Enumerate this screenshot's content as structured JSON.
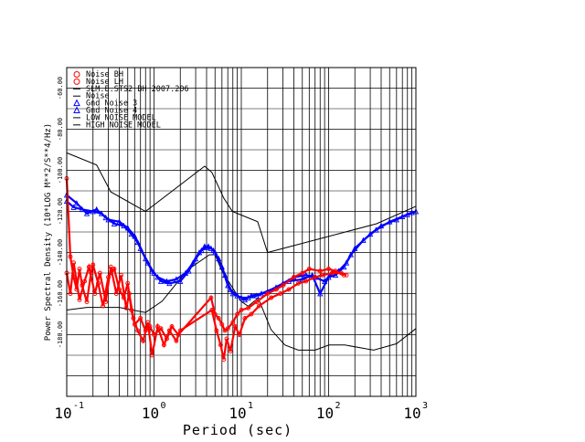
{
  "chart_data": {
    "type": "scatter",
    "xlabel": "Period (sec)",
    "ylabel": "Power Spectral Density (10*LOG M**2/S**4/Hz)",
    "x_scale": "log",
    "xlim": [
      0.1,
      1000
    ],
    "ylim": [
      -210,
      -50
    ],
    "y_ticks": [
      {
        "value": -60,
        "label": "-60.00"
      },
      {
        "value": -80,
        "label": "-80.00"
      },
      {
        "value": -100,
        "label": "-100.00"
      },
      {
        "value": -120,
        "label": "-120.00"
      },
      {
        "value": -140,
        "label": "-140.00"
      },
      {
        "value": -160,
        "label": "-160.00"
      },
      {
        "value": -180,
        "label": "-180.00"
      }
    ],
    "x_ticks": [
      {
        "value": 0.1,
        "base": "10",
        "exp": "-1"
      },
      {
        "value": 1,
        "base": "10",
        "exp": "0"
      },
      {
        "value": 10,
        "base": "10",
        "exp": "1"
      },
      {
        "value": 100,
        "base": "10",
        "exp": "2"
      },
      {
        "value": 1000,
        "base": "10",
        "exp": "3"
      }
    ],
    "grid": true,
    "legend_position": "top-left",
    "legend": [
      {
        "label": "Noise BH",
        "marker": "circle",
        "color": "#ff0000"
      },
      {
        "label": "Noise LH",
        "marker": "circle",
        "color": "#ff0000"
      },
      {
        "label": "SLM.E.STS2 BH  2007.206",
        "marker": "line",
        "color": "#000000"
      },
      {
        "label": "Noise",
        "marker": "line",
        "color": "#000000"
      },
      {
        "label": "Gnd Noise 3",
        "marker": "triangle",
        "color": "#0000ff"
      },
      {
        "label": "Gnd Noise 4",
        "marker": "triangle",
        "color": "#0000ff"
      },
      {
        "label": "LOW NOISE MODEL",
        "marker": "line",
        "color": "#000000"
      },
      {
        "label": "HIGH NOISE MODEL",
        "marker": "line",
        "color": "#000000"
      }
    ],
    "series": [
      {
        "name": "HIGH NOISE MODEL",
        "color": "#000000",
        "style": "line",
        "points": [
          [
            0.1,
            -91.5
          ],
          [
            0.22,
            -97.4
          ],
          [
            0.32,
            -110.5
          ],
          [
            0.8,
            -120
          ],
          [
            3.8,
            -98
          ],
          [
            4.6,
            -101
          ],
          [
            6.3,
            -113.5
          ],
          [
            7.9,
            -120
          ],
          [
            15.4,
            -125
          ],
          [
            20,
            -140
          ],
          [
            354.8,
            -126
          ],
          [
            1000,
            -117.5
          ]
        ]
      },
      {
        "name": "LOW NOISE MODEL",
        "color": "#000000",
        "style": "line",
        "points": [
          [
            0.1,
            -168
          ],
          [
            0.17,
            -166.7
          ],
          [
            0.4,
            -166.7
          ],
          [
            0.8,
            -169.2
          ],
          [
            1.24,
            -163.7
          ],
          [
            2.4,
            -148.6
          ],
          [
            4.3,
            -141.1
          ],
          [
            5,
            -141.1
          ],
          [
            6,
            -149
          ],
          [
            10,
            -163.8
          ],
          [
            12,
            -166.2
          ],
          [
            15.6,
            -162.1
          ],
          [
            21.9,
            -177.5
          ],
          [
            31.6,
            -185
          ],
          [
            45,
            -187.5
          ],
          [
            70,
            -187.5
          ],
          [
            101,
            -185
          ],
          [
            154,
            -185
          ],
          [
            328,
            -187.5
          ],
          [
            600,
            -184.4
          ],
          [
            1000,
            -177
          ]
        ]
      },
      {
        "name": "Gnd Noise 3",
        "color": "#0000ff",
        "marker": "triangle",
        "points": [
          [
            0.1,
            -115
          ],
          [
            0.12,
            -118
          ],
          [
            0.15,
            -119
          ],
          [
            0.2,
            -120
          ],
          [
            0.25,
            -121
          ],
          [
            0.3,
            -124
          ],
          [
            0.4,
            -125
          ],
          [
            0.5,
            -128
          ],
          [
            0.6,
            -132
          ],
          [
            0.7,
            -138
          ],
          [
            0.85,
            -145
          ],
          [
            1,
            -150
          ],
          [
            1.2,
            -154
          ],
          [
            1.5,
            -155
          ],
          [
            2,
            -154
          ],
          [
            2.5,
            -149
          ],
          [
            3,
            -143
          ],
          [
            3.5,
            -139
          ],
          [
            4,
            -137.5
          ],
          [
            4.5,
            -138
          ],
          [
            5,
            -140
          ],
          [
            6,
            -147
          ],
          [
            7,
            -156
          ],
          [
            8,
            -160
          ],
          [
            10,
            -162
          ],
          [
            12,
            -162
          ],
          [
            15,
            -161
          ],
          [
            20,
            -159
          ],
          [
            30,
            -155
          ],
          [
            40,
            -152
          ],
          [
            55,
            -151
          ],
          [
            70,
            -152
          ],
          [
            90,
            -154
          ],
          [
            110,
            -150
          ],
          [
            130,
            -149
          ],
          [
            160,
            -145
          ],
          [
            200,
            -138
          ],
          [
            300,
            -131
          ],
          [
            400,
            -127
          ],
          [
            600,
            -124
          ],
          [
            800,
            -121.5
          ],
          [
            1000,
            -120
          ]
        ]
      },
      {
        "name": "Gnd Noise 4",
        "color": "#0000ff",
        "marker": "triangle",
        "points": [
          [
            0.1,
            -112
          ],
          [
            0.13,
            -116
          ],
          [
            0.17,
            -121
          ],
          [
            0.22,
            -119
          ],
          [
            0.28,
            -123
          ],
          [
            0.35,
            -126
          ],
          [
            0.45,
            -127
          ],
          [
            0.55,
            -131
          ],
          [
            0.65,
            -135
          ],
          [
            0.8,
            -143
          ],
          [
            0.95,
            -149
          ],
          [
            1.1,
            -152
          ],
          [
            1.4,
            -154
          ],
          [
            1.8,
            -153
          ],
          [
            2.3,
            -150
          ],
          [
            2.8,
            -145
          ],
          [
            3.3,
            -140
          ],
          [
            3.8,
            -137
          ],
          [
            4.2,
            -137
          ],
          [
            4.8,
            -139
          ],
          [
            5.5,
            -143
          ],
          [
            6.5,
            -151
          ],
          [
            7.5,
            -158
          ],
          [
            9,
            -161
          ],
          [
            11,
            -163
          ],
          [
            13,
            -161
          ],
          [
            17,
            -160
          ],
          [
            25,
            -157
          ],
          [
            35,
            -154
          ],
          [
            50,
            -153
          ],
          [
            65,
            -151
          ],
          [
            80,
            -160
          ],
          [
            100,
            -152
          ],
          [
            120,
            -151
          ],
          [
            150,
            -147
          ],
          [
            180,
            -141
          ],
          [
            250,
            -134
          ],
          [
            350,
            -129
          ],
          [
            500,
            -125
          ],
          [
            700,
            -122.5
          ],
          [
            900,
            -120.5
          ]
        ]
      },
      {
        "name": "Noise BH",
        "color": "#ff0000",
        "marker": "circle",
        "points": [
          [
            0.1,
            -104
          ],
          [
            0.11,
            -142
          ],
          [
            0.12,
            -152
          ],
          [
            0.13,
            -158
          ],
          [
            0.14,
            -148
          ],
          [
            0.15,
            -156
          ],
          [
            0.17,
            -164
          ],
          [
            0.19,
            -150
          ],
          [
            0.2,
            -146
          ],
          [
            0.23,
            -155
          ],
          [
            0.26,
            -166
          ],
          [
            0.3,
            -152
          ],
          [
            0.35,
            -148
          ],
          [
            0.4,
            -158
          ],
          [
            0.45,
            -162
          ],
          [
            0.5,
            -155
          ],
          [
            0.55,
            -168
          ],
          [
            0.6,
            -175
          ],
          [
            0.7,
            -172
          ],
          [
            0.8,
            -178
          ],
          [
            0.9,
            -176
          ],
          [
            1,
            -180
          ],
          [
            1.2,
            -177
          ],
          [
            1.4,
            -182
          ],
          [
            1.6,
            -176
          ],
          [
            1.9,
            -180
          ],
          [
            4.5,
            -162
          ],
          [
            5,
            -170
          ],
          [
            5.5,
            -172
          ],
          [
            6,
            -175
          ],
          [
            6.5,
            -178
          ],
          [
            7,
            -177
          ],
          [
            8,
            -174
          ],
          [
            9,
            -170
          ],
          [
            10,
            -168
          ],
          [
            12,
            -167
          ],
          [
            15,
            -164
          ],
          [
            20,
            -160
          ],
          [
            25,
            -158
          ],
          [
            30,
            -156
          ],
          [
            40,
            -152
          ],
          [
            50,
            -150
          ],
          [
            60,
            -148
          ],
          [
            80,
            -149
          ],
          [
            100,
            -148
          ],
          [
            120,
            -149
          ],
          [
            150,
            -151
          ]
        ]
      },
      {
        "name": "Noise LH",
        "color": "#ff0000",
        "marker": "circle",
        "points": [
          [
            0.1,
            -150
          ],
          [
            0.11,
            -160
          ],
          [
            0.12,
            -145
          ],
          [
            0.14,
            -163
          ],
          [
            0.16,
            -154
          ],
          [
            0.18,
            -147
          ],
          [
            0.21,
            -160
          ],
          [
            0.24,
            -150
          ],
          [
            0.28,
            -164
          ],
          [
            0.32,
            -147
          ],
          [
            0.37,
            -160
          ],
          [
            0.42,
            -151
          ],
          [
            0.48,
            -167
          ],
          [
            0.52,
            -160
          ],
          [
            0.58,
            -172
          ],
          [
            0.65,
            -178
          ],
          [
            0.75,
            -183
          ],
          [
            0.85,
            -174
          ],
          [
            0.95,
            -190
          ],
          [
            1.1,
            -176
          ],
          [
            1.3,
            -185
          ],
          [
            1.5,
            -178
          ],
          [
            1.8,
            -183
          ],
          [
            2,
            -178
          ],
          [
            4.6,
            -168
          ],
          [
            5.2,
            -178
          ],
          [
            5.8,
            -185
          ],
          [
            6.3,
            -192
          ],
          [
            6.8,
            -182
          ],
          [
            7.5,
            -188
          ],
          [
            8.5,
            -176
          ],
          [
            9.5,
            -180
          ],
          [
            11,
            -172
          ],
          [
            13,
            -170
          ],
          [
            16,
            -166
          ],
          [
            22,
            -162
          ],
          [
            28,
            -160
          ],
          [
            35,
            -158
          ],
          [
            45,
            -155
          ],
          [
            55,
            -154
          ],
          [
            70,
            -152
          ],
          [
            85,
            -151
          ],
          [
            110,
            -150
          ],
          [
            140,
            -150
          ],
          [
            160,
            -151
          ]
        ]
      }
    ]
  }
}
